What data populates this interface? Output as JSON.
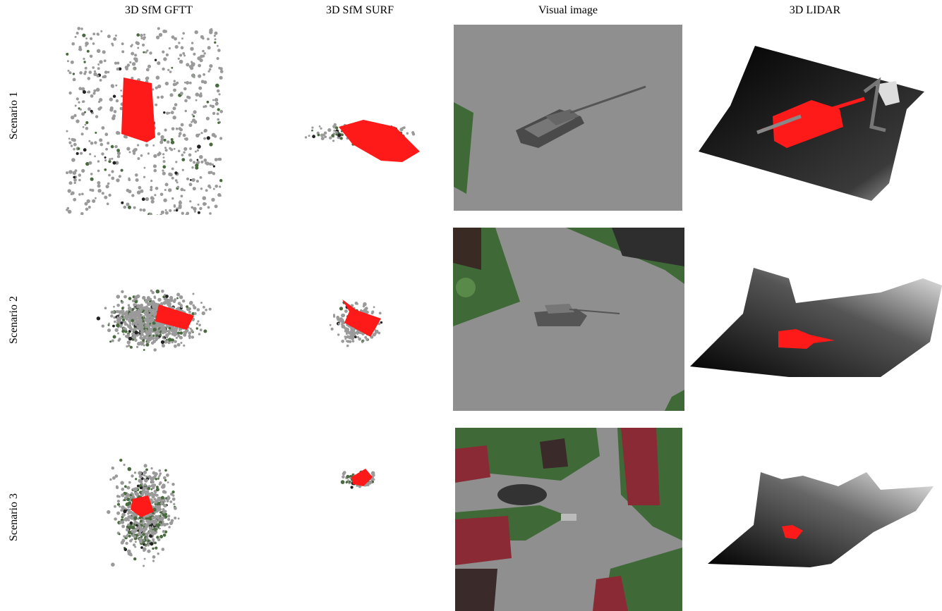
{
  "columns": [
    "3D SfM GFTT",
    "3D SfM SURF",
    "Visual image",
    "3D LIDAR"
  ],
  "rows": [
    "Scenario 1",
    "Scenario 2",
    "Scenario 3"
  ],
  "colors": {
    "target_red": "#ff1a1a",
    "point_gray": "#9a9a9a",
    "point_green": "#4a6a40",
    "ground_gray": "#8f8f8f",
    "grass_green": "#3f6a38",
    "roof_red": "#8a2a34"
  }
}
